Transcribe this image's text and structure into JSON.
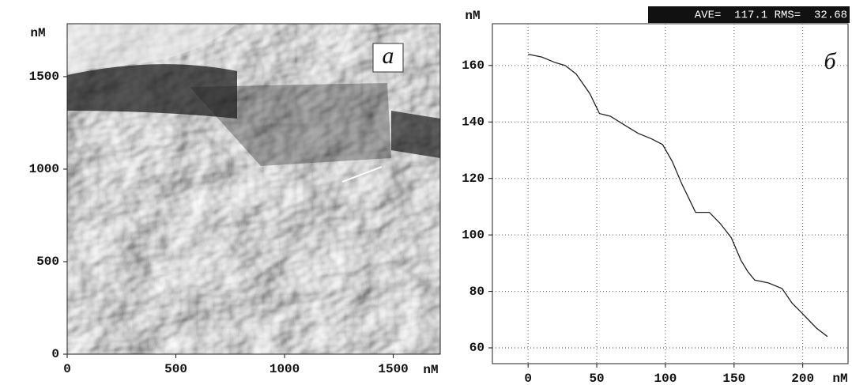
{
  "chart_data": [
    {
      "type": "image",
      "panel_label": "a",
      "x_unit": "nM",
      "y_unit": "nM",
      "xlim": [
        0,
        1716
      ],
      "ylim": [
        0,
        1786
      ],
      "xticks": [
        0,
        500,
        1000,
        1500
      ],
      "yticks": [
        0,
        500,
        1000,
        1500
      ]
    },
    {
      "type": "line",
      "panel_label": "б",
      "x_unit": "nM",
      "y_unit": "nM",
      "stats": "AVE=  117.1 RMS=  32.68",
      "color": "#222222",
      "grid": true,
      "xlim": [
        -26,
        233
      ],
      "ylim": [
        54.4,
        174.8
      ],
      "xticks": [
        0,
        50,
        100,
        150,
        200
      ],
      "yticks": [
        60,
        80,
        100,
        120,
        140,
        160
      ],
      "x": [
        0,
        10,
        20,
        27,
        35,
        45,
        52,
        60,
        70,
        80,
        90,
        98,
        105,
        112,
        118,
        122,
        132,
        140,
        148,
        155,
        160,
        165,
        175,
        185,
        192,
        200,
        210,
        218
      ],
      "values": [
        164,
        163,
        161,
        160,
        157,
        150,
        143,
        142,
        139,
        136,
        134,
        132,
        126,
        118,
        112,
        108,
        108,
        104,
        99,
        91,
        87,
        84,
        83,
        81,
        76,
        72,
        67,
        64
      ]
    }
  ]
}
